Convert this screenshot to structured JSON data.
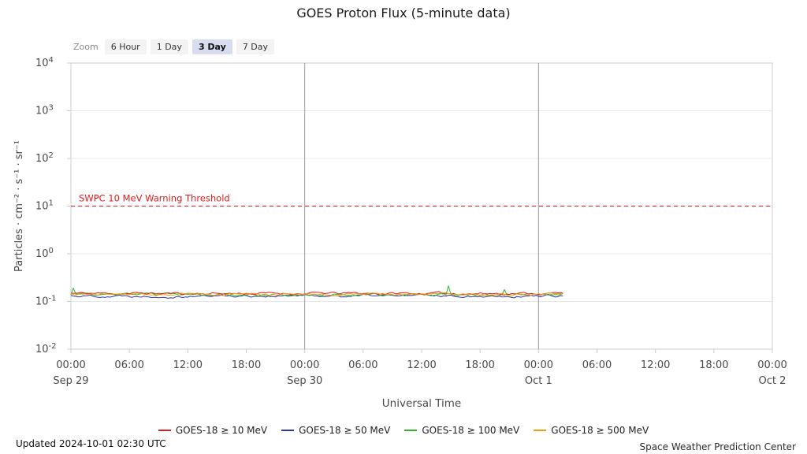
{
  "title": "GOES Proton Flux (5-minute data)",
  "zoom": {
    "label": "Zoom",
    "options": [
      "6 Hour",
      "1 Day",
      "3 Day",
      "7 Day"
    ],
    "selected": "3 Day"
  },
  "chart_data": {
    "type": "line",
    "title": "GOES Proton Flux (5-minute data)",
    "xlabel": "Universal Time",
    "ylabel": "Particles · cm⁻² · s⁻¹ · sr⁻¹",
    "y_scale": "log",
    "ylim": [
      0.01,
      10000
    ],
    "y_ticks_exponents": [
      4,
      3,
      2,
      1,
      0,
      -1,
      -2
    ],
    "x_hours_range": [
      0,
      72
    ],
    "x_major_tick_hours": 6,
    "x_tick_labels": [
      "00:00",
      "06:00",
      "12:00",
      "18:00"
    ],
    "x_date_labels": [
      {
        "hour": 0,
        "label": "Sep 29"
      },
      {
        "hour": 24,
        "label": "Sep 30"
      },
      {
        "hour": 48,
        "label": "Oct 1"
      },
      {
        "hour": 72,
        "label": "Oct 2"
      }
    ],
    "day_boundary_hours": [
      24,
      48
    ],
    "data_end_hour": 50.5,
    "grid": "horizontal",
    "legend_position": "bottom",
    "threshold": {
      "value": 10,
      "label": "SWPC 10 MeV Warning Threshold",
      "color": "#e31a1c"
    },
    "series": [
      {
        "name": "GOES-18 ≥ 10 MeV",
        "color": "#e31a1c",
        "baseline": 0.148,
        "seed": 11
      },
      {
        "name": "GOES-18 ≥ 50 MeV",
        "color": "#2b35af",
        "baseline": 0.132,
        "seed": 22
      },
      {
        "name": "GOES-18 ≥ 100 MeV",
        "color": "#2fb52d",
        "baseline": 0.138,
        "seed": 33,
        "spikes": true
      },
      {
        "name": "GOES-18 ≥ 500 MeV",
        "color": "#f59d0e",
        "baseline": 0.142,
        "seed": 44
      }
    ],
    "draw_order": [
      1,
      2,
      0,
      3
    ]
  },
  "footer": {
    "updated": "Updated 2024-10-01 02:30 UTC",
    "source": "Space Weather Prediction Center"
  }
}
